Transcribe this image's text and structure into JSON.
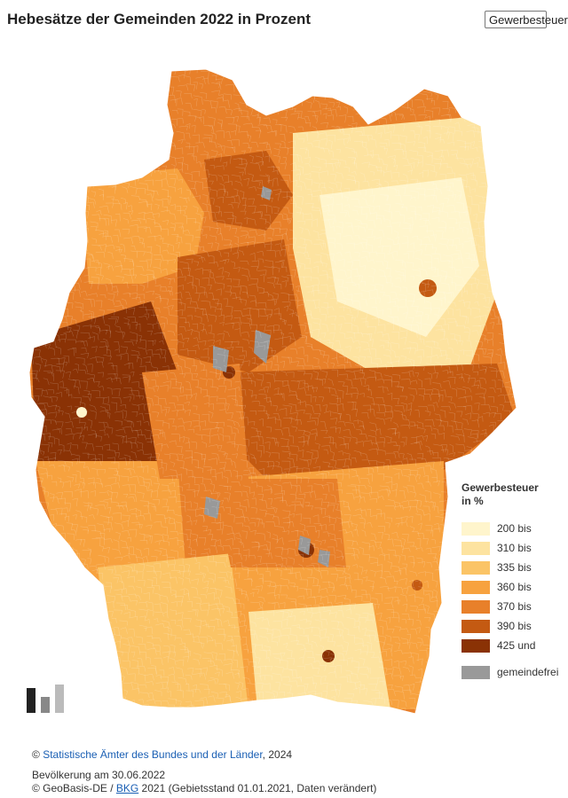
{
  "header": {
    "title": "Hebesätze der Gemeinden 2022 in Prozent",
    "select_value": "Gewerbesteuer"
  },
  "colors": {
    "c1": "#fff5cc",
    "c2": "#fde3a0",
    "c3": "#fbc466",
    "c4": "#f7a23f",
    "c5": "#e8802a",
    "c6": "#c45a12",
    "c7": "#8a3205",
    "nodata": "#999999"
  },
  "legend": {
    "title_line1": "Gewerbesteuer",
    "title_line2": "in %",
    "classes": [
      {
        "label": "200 bis",
        "color": "#fff5cc"
      },
      {
        "label": "310 bis",
        "color": "#fde3a0"
      },
      {
        "label": "335 bis",
        "color": "#fbc466"
      },
      {
        "label": "360 bis",
        "color": "#f7a23f"
      },
      {
        "label": "370 bis",
        "color": "#e8802a"
      },
      {
        "label": "390 bis",
        "color": "#c45a12"
      },
      {
        "label": "425 und",
        "color": "#8a3205"
      },
      {
        "label": "gemeindefrei",
        "color": "#999999"
      }
    ]
  },
  "footer": {
    "source_copyright": "© ",
    "source_link": "Statistische Ämter des Bundes und der Länder",
    "source_year": ", 2024",
    "population": "Bevölkerung am 30.06.2022",
    "geo_prefix": "© GeoBasis-DE / ",
    "geo_link": "BKG",
    "geo_suffix": " 2021 (Gebietsstand 01.01.2021, Daten verändert)"
  }
}
